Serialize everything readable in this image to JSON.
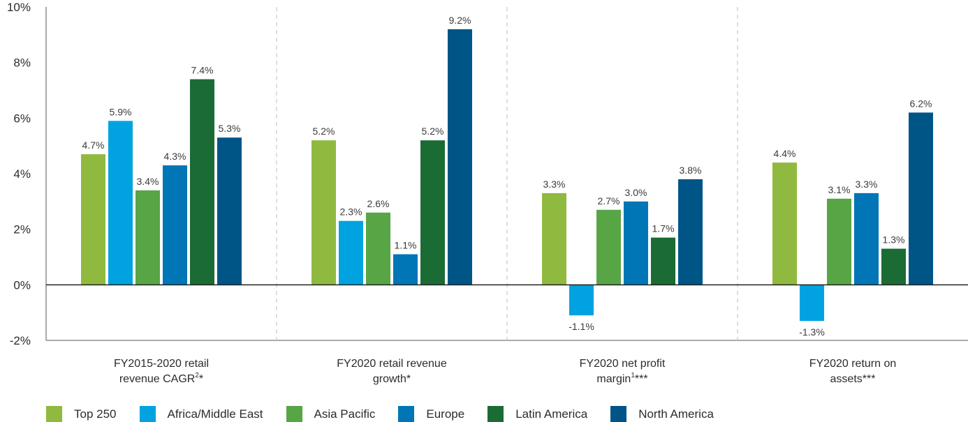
{
  "chart_data": {
    "type": "bar",
    "categories": [
      {
        "lines": [
          "FY2015-2020 retail",
          "revenue CAGR"
        ],
        "sup": "2",
        "suffix": "*"
      },
      {
        "lines": [
          "FY2020 retail revenue",
          "growth*"
        ],
        "sup": "",
        "suffix": ""
      },
      {
        "lines": [
          "FY2020 net profit",
          "margin"
        ],
        "sup": "1",
        "suffix": "***"
      },
      {
        "lines": [
          "FY2020 return on",
          "assets***"
        ],
        "sup": "",
        "suffix": ""
      }
    ],
    "series": [
      {
        "name": "Top 250",
        "color": "#8fba3f",
        "values": [
          4.7,
          5.2,
          3.3,
          4.4
        ],
        "labels": [
          "4.7%",
          "5.2%",
          "3.3%",
          "4.4%"
        ]
      },
      {
        "name": "Africa/Middle East",
        "color": "#00a3e0",
        "values": [
          5.9,
          2.3,
          -1.1,
          -1.3
        ],
        "labels": [
          "5.9%",
          "2.3%",
          "-1.1%",
          "-1.3%"
        ]
      },
      {
        "name": "Asia Pacific",
        "color": "#58a546",
        "values": [
          3.4,
          2.6,
          2.7,
          3.1
        ],
        "labels": [
          "3.4%",
          "2.6%",
          "2.7%",
          "3.1%"
        ]
      },
      {
        "name": "Europe",
        "color": "#0076b6",
        "values": [
          4.3,
          1.1,
          3.0,
          3.3
        ],
        "labels": [
          "4.3%",
          "1.1%",
          "3.0%",
          "3.3%"
        ]
      },
      {
        "name": "Latin America",
        "color": "#1b6b35",
        "values": [
          7.4,
          5.2,
          1.7,
          1.3
        ],
        "labels": [
          "7.4%",
          "5.2%",
          "1.7%",
          "1.3%"
        ]
      },
      {
        "name": "North America",
        "color": "#005587",
        "values": [
          5.3,
          9.2,
          3.8,
          6.2
        ],
        "labels": [
          "5.3%",
          "9.2%",
          "3.8%",
          "6.2%"
        ]
      }
    ],
    "y_ticks": [
      {
        "value": 10,
        "label": "10%"
      },
      {
        "value": 8,
        "label": "8%"
      },
      {
        "value": 6,
        "label": "6%"
      },
      {
        "value": 4,
        "label": "4%"
      },
      {
        "value": 2,
        "label": "2%"
      },
      {
        "value": 0,
        "label": "0%"
      },
      {
        "value": -2,
        "label": "-2%"
      }
    ],
    "ylim": [
      -2,
      10
    ],
    "grid": false,
    "group_separators": "dashed",
    "legend_position": "bottom"
  }
}
